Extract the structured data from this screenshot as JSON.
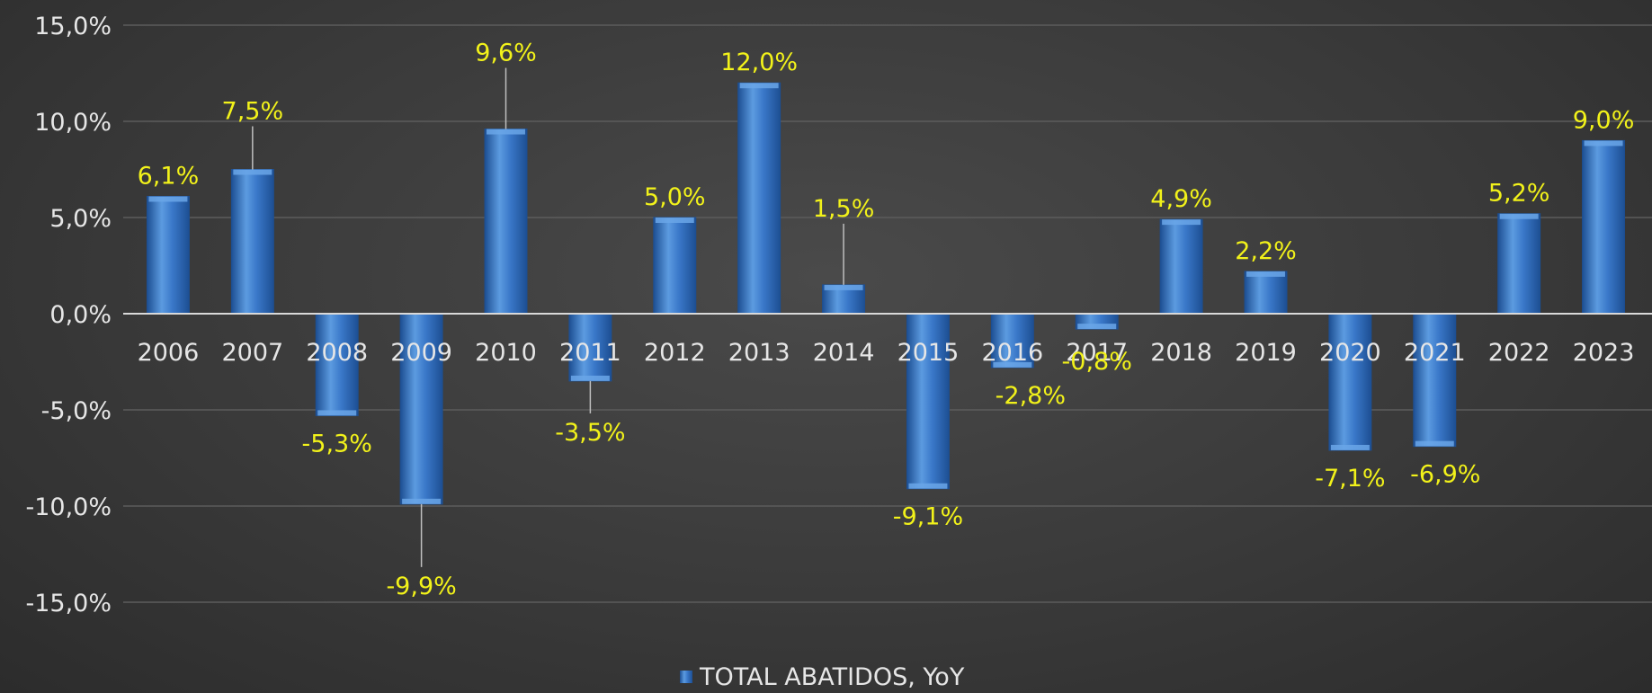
{
  "chart_data": {
    "type": "bar",
    "categories": [
      "2006",
      "2007",
      "2008",
      "2009",
      "2010",
      "2011",
      "2012",
      "2013",
      "2014",
      "2015",
      "2016",
      "2017",
      "2018",
      "2019",
      "2020",
      "2021",
      "2022",
      "2023"
    ],
    "series": [
      {
        "name": "TOTAL ABATIDOS, YoY",
        "values": [
          6.1,
          7.5,
          -5.3,
          -9.9,
          9.6,
          -3.5,
          5.0,
          12.0,
          1.5,
          -9.1,
          -2.8,
          -0.8,
          4.9,
          2.2,
          -7.1,
          -6.9,
          5.2,
          9.0
        ],
        "labels": [
          "6,1%",
          "7,5%",
          "-5,3%",
          "-9,9%",
          "9,6%",
          "-3,5%",
          "5,0%",
          "12,0%",
          "1,5%",
          "-9,1%",
          "-2,8%",
          "-0,8%",
          "4,9%",
          "2,2%",
          "-7,1%",
          "-6,9%",
          "5,2%",
          "9,0%"
        ]
      }
    ],
    "yticks": [
      15,
      10,
      5,
      0,
      -5,
      -10,
      -15
    ],
    "ytick_labels": [
      "15,0%",
      "10,0%",
      "5,0%",
      "0,0%",
      "-5,0%",
      "-10,0%",
      "-15,0%"
    ],
    "ylim": [
      -15,
      15
    ],
    "grid": true,
    "legend_position": "bottom",
    "colors": {
      "bar": "#3a78c9",
      "bar_light": "#6aa6e8",
      "bar_dark": "#1d4f93",
      "label": "#f2f21a",
      "text": "#e6e6e6",
      "grid": "#5c5c5c"
    }
  }
}
